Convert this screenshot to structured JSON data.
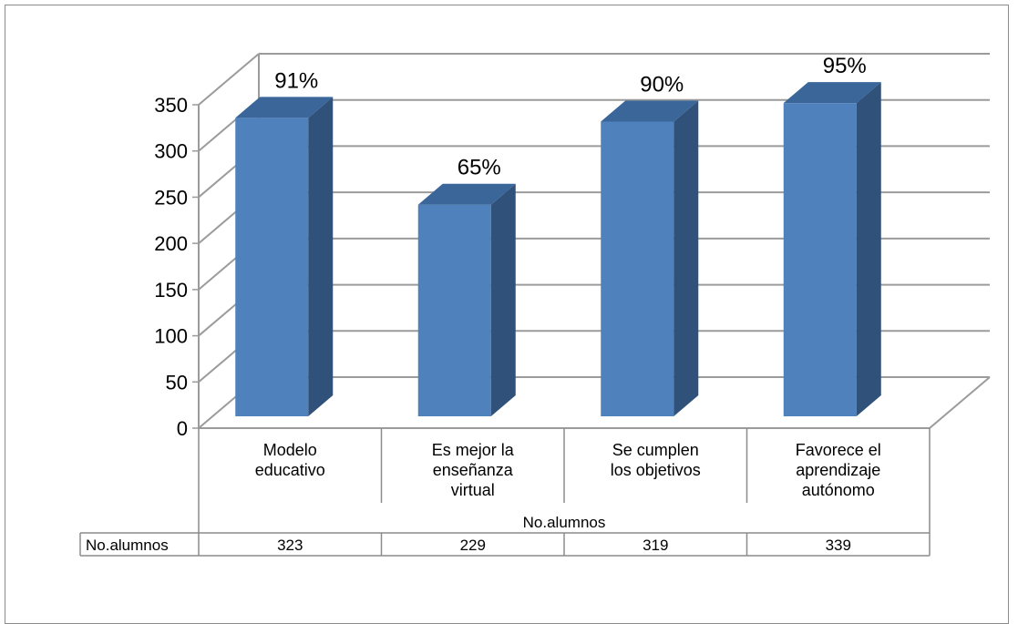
{
  "chart_data": {
    "type": "bar",
    "title": "",
    "xlabel": "No.alumnos",
    "ylabel": "",
    "ylim": [
      0,
      350
    ],
    "yticks": [
      0,
      50,
      100,
      150,
      200,
      250,
      300,
      350
    ],
    "grid": true,
    "categories": [
      [
        "Modelo",
        "educativo"
      ],
      [
        "Es mejor la",
        "enseñanza",
        "virtual"
      ],
      [
        "Se cumplen",
        "los objetivos"
      ],
      [
        "Favorece el",
        "aprendizaje",
        "autónomo"
      ]
    ],
    "series": [
      {
        "name": "No.alumnos",
        "values": [
          323,
          229,
          319,
          339
        ]
      }
    ],
    "data_labels": [
      "91%",
      "65%",
      "90%",
      "95%"
    ],
    "table": {
      "row_header": "No.alumnos",
      "group_label": "No.alumnos",
      "values": [
        "323",
        "229",
        "319",
        "339"
      ]
    },
    "colors": {
      "bar_front": "#4F81BD",
      "bar_side": "#30527A",
      "bar_top": "#3A6699",
      "grid": "#9B9B9B"
    }
  }
}
